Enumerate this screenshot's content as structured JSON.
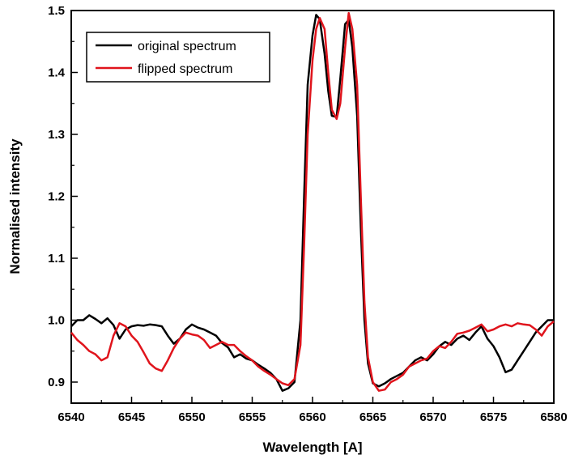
{
  "chart_data": {
    "type": "line",
    "title": "",
    "xlabel": "Wavelength [A]",
    "ylabel": "Normalised intensity",
    "xlim": [
      6540,
      6580
    ],
    "ylim": [
      0.866,
      1.5
    ],
    "x_ticks": [
      "6540",
      "6545",
      "6550",
      "6555",
      "6560",
      "6565",
      "6570",
      "6575",
      "6580"
    ],
    "y_ticks": [
      "0.9",
      "1.0",
      "1.1",
      "1.2",
      "1.3",
      "1.4",
      "1.5"
    ],
    "grid": false,
    "legend_position": "top-left",
    "series": [
      {
        "name": "original spectrum",
        "color": "#000000",
        "points": [
          [
            6540.0,
            0.99
          ],
          [
            6540.5,
            1.0
          ],
          [
            6541.0,
            1.0
          ],
          [
            6541.5,
            1.008
          ],
          [
            6542.0,
            1.002
          ],
          [
            6542.5,
            0.995
          ],
          [
            6543.0,
            1.003
          ],
          [
            6543.5,
            0.992
          ],
          [
            6544.0,
            0.97
          ],
          [
            6544.5,
            0.985
          ],
          [
            6545.0,
            0.99
          ],
          [
            6545.5,
            0.992
          ],
          [
            6546.0,
            0.991
          ],
          [
            6546.5,
            0.993
          ],
          [
            6547.0,
            0.992
          ],
          [
            6547.5,
            0.99
          ],
          [
            6548.0,
            0.975
          ],
          [
            6548.5,
            0.962
          ],
          [
            6549.0,
            0.97
          ],
          [
            6549.5,
            0.985
          ],
          [
            6550.0,
            0.993
          ],
          [
            6550.5,
            0.988
          ],
          [
            6551.0,
            0.985
          ],
          [
            6551.5,
            0.98
          ],
          [
            6552.0,
            0.975
          ],
          [
            6552.5,
            0.963
          ],
          [
            6553.0,
            0.956
          ],
          [
            6553.5,
            0.94
          ],
          [
            6554.0,
            0.945
          ],
          [
            6554.5,
            0.938
          ],
          [
            6555.0,
            0.935
          ],
          [
            6555.5,
            0.928
          ],
          [
            6556.0,
            0.922
          ],
          [
            6556.5,
            0.915
          ],
          [
            6557.0,
            0.905
          ],
          [
            6557.5,
            0.886
          ],
          [
            6558.0,
            0.89
          ],
          [
            6558.5,
            0.9
          ],
          [
            6559.0,
            1.0
          ],
          [
            6559.3,
            1.2
          ],
          [
            6559.6,
            1.38
          ],
          [
            6560.0,
            1.46
          ],
          [
            6560.3,
            1.493
          ],
          [
            6560.6,
            1.486
          ],
          [
            6561.0,
            1.43
          ],
          [
            6561.3,
            1.37
          ],
          [
            6561.6,
            1.33
          ],
          [
            6562.0,
            1.328
          ],
          [
            6562.3,
            1.39
          ],
          [
            6562.7,
            1.478
          ],
          [
            6563.0,
            1.485
          ],
          [
            6563.3,
            1.44
          ],
          [
            6563.7,
            1.33
          ],
          [
            6564.0,
            1.15
          ],
          [
            6564.3,
            1.0
          ],
          [
            6564.6,
            0.93
          ],
          [
            6565.0,
            0.898
          ],
          [
            6565.5,
            0.893
          ],
          [
            6566.0,
            0.898
          ],
          [
            6566.5,
            0.905
          ],
          [
            6567.0,
            0.91
          ],
          [
            6567.5,
            0.915
          ],
          [
            6568.0,
            0.925
          ],
          [
            6568.5,
            0.935
          ],
          [
            6569.0,
            0.94
          ],
          [
            6569.5,
            0.935
          ],
          [
            6570.0,
            0.945
          ],
          [
            6570.5,
            0.958
          ],
          [
            6571.0,
            0.965
          ],
          [
            6571.5,
            0.96
          ],
          [
            6572.0,
            0.97
          ],
          [
            6572.5,
            0.975
          ],
          [
            6573.0,
            0.968
          ],
          [
            6573.5,
            0.98
          ],
          [
            6574.0,
            0.99
          ],
          [
            6574.5,
            0.97
          ],
          [
            6575.0,
            0.958
          ],
          [
            6575.5,
            0.94
          ],
          [
            6576.0,
            0.916
          ],
          [
            6576.5,
            0.92
          ],
          [
            6577.0,
            0.935
          ],
          [
            6577.5,
            0.95
          ],
          [
            6578.0,
            0.965
          ],
          [
            6578.5,
            0.98
          ],
          [
            6579.0,
            0.99
          ],
          [
            6579.5,
            1.0
          ],
          [
            6580.0,
            1.0
          ]
        ]
      },
      {
        "name": "flipped spectrum",
        "color": "#e0141c",
        "points": [
          [
            6540.0,
            0.98
          ],
          [
            6540.5,
            0.968
          ],
          [
            6541.0,
            0.96
          ],
          [
            6541.5,
            0.95
          ],
          [
            6542.0,
            0.945
          ],
          [
            6542.5,
            0.935
          ],
          [
            6543.0,
            0.94
          ],
          [
            6543.5,
            0.975
          ],
          [
            6544.0,
            0.995
          ],
          [
            6544.5,
            0.99
          ],
          [
            6545.0,
            0.975
          ],
          [
            6545.5,
            0.965
          ],
          [
            6546.0,
            0.948
          ],
          [
            6546.5,
            0.93
          ],
          [
            6547.0,
            0.922
          ],
          [
            6547.5,
            0.918
          ],
          [
            6548.0,
            0.935
          ],
          [
            6548.5,
            0.955
          ],
          [
            6549.0,
            0.97
          ],
          [
            6549.5,
            0.98
          ],
          [
            6550.0,
            0.977
          ],
          [
            6550.5,
            0.975
          ],
          [
            6551.0,
            0.968
          ],
          [
            6551.5,
            0.955
          ],
          [
            6552.0,
            0.96
          ],
          [
            6552.5,
            0.965
          ],
          [
            6553.0,
            0.96
          ],
          [
            6553.5,
            0.96
          ],
          [
            6554.0,
            0.95
          ],
          [
            6554.5,
            0.942
          ],
          [
            6555.0,
            0.935
          ],
          [
            6555.5,
            0.925
          ],
          [
            6556.0,
            0.918
          ],
          [
            6556.5,
            0.912
          ],
          [
            6557.0,
            0.905
          ],
          [
            6557.5,
            0.898
          ],
          [
            6558.0,
            0.895
          ],
          [
            6558.5,
            0.905
          ],
          [
            6559.0,
            0.96
          ],
          [
            6559.3,
            1.12
          ],
          [
            6559.6,
            1.3
          ],
          [
            6560.0,
            1.42
          ],
          [
            6560.3,
            1.47
          ],
          [
            6560.6,
            1.488
          ],
          [
            6561.0,
            1.47
          ],
          [
            6561.3,
            1.4
          ],
          [
            6561.6,
            1.34
          ],
          [
            6562.0,
            1.325
          ],
          [
            6562.3,
            1.35
          ],
          [
            6562.7,
            1.44
          ],
          [
            6563.0,
            1.496
          ],
          [
            6563.3,
            1.47
          ],
          [
            6563.7,
            1.38
          ],
          [
            6564.0,
            1.2
          ],
          [
            6564.3,
            1.03
          ],
          [
            6564.6,
            0.94
          ],
          [
            6565.0,
            0.9
          ],
          [
            6565.5,
            0.886
          ],
          [
            6566.0,
            0.888
          ],
          [
            6566.5,
            0.9
          ],
          [
            6567.0,
            0.905
          ],
          [
            6567.5,
            0.912
          ],
          [
            6568.0,
            0.925
          ],
          [
            6568.5,
            0.93
          ],
          [
            6569.0,
            0.935
          ],
          [
            6569.5,
            0.938
          ],
          [
            6570.0,
            0.95
          ],
          [
            6570.5,
            0.958
          ],
          [
            6571.0,
            0.955
          ],
          [
            6571.5,
            0.965
          ],
          [
            6572.0,
            0.978
          ],
          [
            6572.5,
            0.98
          ],
          [
            6573.0,
            0.983
          ],
          [
            6573.5,
            0.988
          ],
          [
            6574.0,
            0.993
          ],
          [
            6574.5,
            0.982
          ],
          [
            6575.0,
            0.985
          ],
          [
            6575.5,
            0.99
          ],
          [
            6576.0,
            0.993
          ],
          [
            6576.5,
            0.99
          ],
          [
            6577.0,
            0.995
          ],
          [
            6577.5,
            0.993
          ],
          [
            6578.0,
            0.992
          ],
          [
            6578.5,
            0.985
          ],
          [
            6579.0,
            0.975
          ],
          [
            6579.5,
            0.99
          ],
          [
            6580.0,
            0.998
          ]
        ]
      }
    ]
  }
}
